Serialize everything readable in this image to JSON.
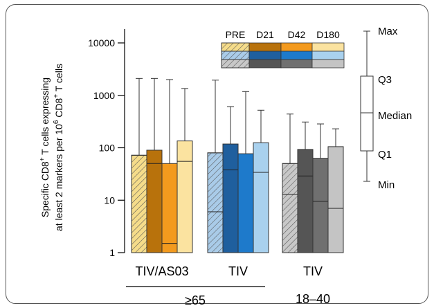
{
  "chart_data": {
    "type": "box",
    "ylabel_line1_main": "Specific CD8",
    "ylabel_line1_sup": "+",
    "ylabel_line1_rest": " T cells expressing",
    "ylabel_line2_main": "at least 2 markers per 10",
    "ylabel_line2_sup": "6",
    "ylabel_line2_mid": " CD8",
    "ylabel_line2_sup2": "+",
    "ylabel_line2_rest": " T cells",
    "yscale": "log",
    "ylim": [
      1,
      10000
    ],
    "yticks": [
      1,
      10,
      100,
      1000,
      10000
    ],
    "ytick_labels": [
      "1",
      "10",
      "100",
      "1000",
      "10000"
    ],
    "timepoints": [
      "PRE",
      "D21",
      "D42",
      "D180"
    ],
    "groups": [
      {
        "label": "TIV/AS03",
        "palette": [
          "#F5DC8A",
          "#B8720C",
          "#F39A1E",
          "#FBE3A0"
        ],
        "boxes": [
          {
            "timepoint": "PRE",
            "min": 1,
            "q1": 1,
            "median": 1,
            "q3": 72,
            "max": 2100
          },
          {
            "timepoint": "D21",
            "min": 1,
            "q1": 1,
            "median": 50,
            "q3": 90,
            "max": 2100
          },
          {
            "timepoint": "D42",
            "min": 1,
            "q1": 1,
            "median": 1.5,
            "q3": 50,
            "max": 2000
          },
          {
            "timepoint": "D180",
            "min": 1,
            "q1": 1,
            "median": 55,
            "q3": 135,
            "max": 1350
          }
        ]
      },
      {
        "label": "TIV",
        "palette": [
          "#A9CBE8",
          "#1F5F9E",
          "#1E7ACB",
          "#A9D1EE"
        ],
        "boxes": [
          {
            "timepoint": "PRE",
            "min": 1,
            "q1": 1,
            "median": 6,
            "q3": 80,
            "max": 1950
          },
          {
            "timepoint": "D21",
            "min": 1,
            "q1": 1,
            "median": 38,
            "q3": 118,
            "max": 610
          },
          {
            "timepoint": "D42",
            "min": 1,
            "q1": 1,
            "median": 1,
            "q3": 77,
            "max": 1180
          },
          {
            "timepoint": "D180",
            "min": 1,
            "q1": 1,
            "median": 34,
            "q3": 125,
            "max": 520
          }
        ]
      },
      {
        "label": "TIV",
        "palette": [
          "#C8C8C8",
          "#555555",
          "#707070",
          "#C4C4C4"
        ],
        "boxes": [
          {
            "timepoint": "PRE",
            "min": 1,
            "q1": 1,
            "median": 13,
            "q3": 50,
            "max": 440
          },
          {
            "timepoint": "D21",
            "min": 1,
            "q1": 1,
            "median": 29,
            "q3": 93,
            "max": 310
          },
          {
            "timepoint": "D42",
            "min": 1,
            "q1": 1,
            "median": 9.5,
            "q3": 63,
            "max": 285
          },
          {
            "timepoint": "D180",
            "min": 1,
            "q1": 1,
            "median": 7,
            "q3": 105,
            "max": 230
          }
        ]
      }
    ],
    "age_labels": [
      "≥65",
      "18–40"
    ],
    "key_labels": {
      "max": "Max",
      "q3": "Q3",
      "median": "Median",
      "q1": "Q1",
      "min": "Min"
    },
    "legend_position": "top-right",
    "grid": false
  }
}
